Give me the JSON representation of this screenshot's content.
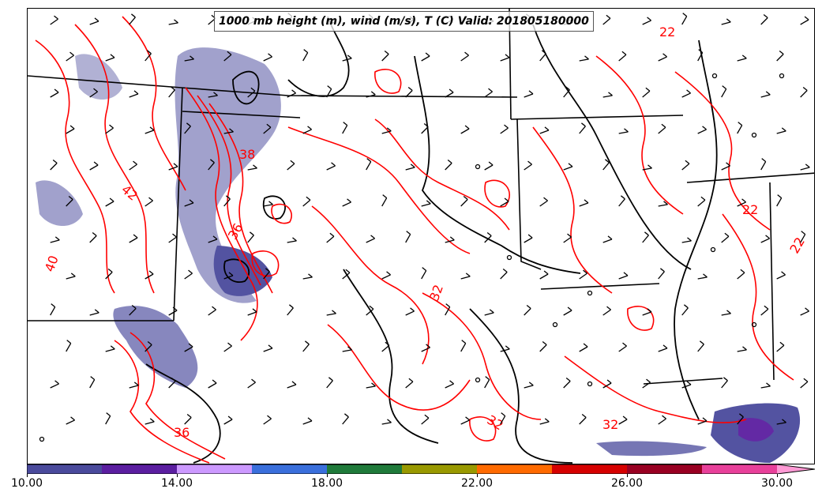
{
  "title": "1000 mb height (m), wind (m/s), T (C) Valid: 201805180000",
  "contour_labels": [
    "32",
    "32",
    "32",
    "22",
    "22",
    "22",
    "42",
    "40",
    "36",
    "38",
    "36"
  ],
  "colorbar": {
    "min": 10.0,
    "max": 31.0,
    "bins": [
      {
        "from": 10,
        "to": 12,
        "color": "#4a4a9c"
      },
      {
        "from": 12,
        "to": 14,
        "color": "#5b1ea0"
      },
      {
        "from": 14,
        "to": 16,
        "color": "#cc99ff"
      },
      {
        "from": 16,
        "to": 18,
        "color": "#3a6fdc"
      },
      {
        "from": 18,
        "to": 20,
        "color": "#1f7a3a"
      },
      {
        "from": 20,
        "to": 22,
        "color": "#999900"
      },
      {
        "from": 22,
        "to": 24,
        "color": "#ff6a00"
      },
      {
        "from": 24,
        "to": 26,
        "color": "#d60000"
      },
      {
        "from": 26,
        "to": 28,
        "color": "#990022"
      },
      {
        "from": 28,
        "to": 30,
        "color": "#e8409a"
      },
      {
        "from": 30,
        "to": 31,
        "color": "#ff9ad5"
      }
    ],
    "tick_labels": [
      "10.00",
      "14.00",
      "18.00",
      "22.00",
      "26.00",
      "30.00"
    ],
    "tick_values": [
      10,
      14,
      18,
      22,
      26,
      30
    ]
  },
  "styles": {
    "temperature_contour_color": "#ff0000",
    "height_contour_color": "#000000",
    "border_color": "#000000",
    "wind_barb_color": "#000000"
  }
}
